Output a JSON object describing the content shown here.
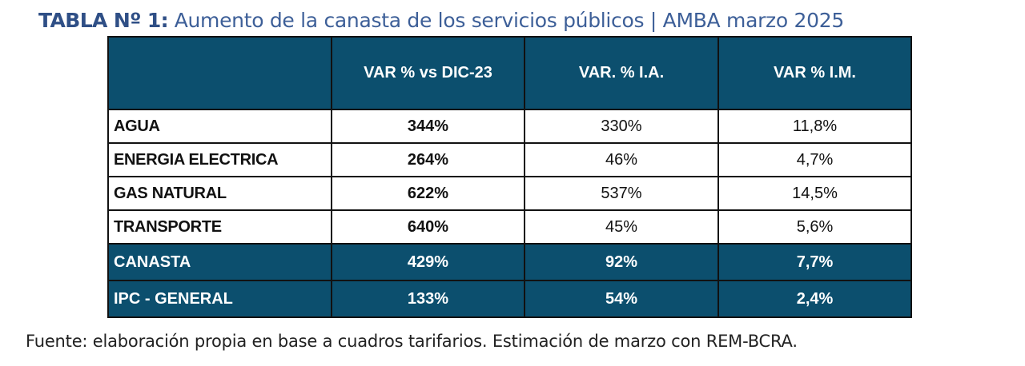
{
  "title": {
    "bold": "TABLA Nº 1:",
    "rest": "Aumento de la canasta de los servicios públicos | AMBA marzo 2025"
  },
  "table": {
    "headers": [
      "",
      "VAR % vs DIC-23",
      "VAR. % I.A.",
      "VAR % I.M."
    ],
    "rows": [
      [
        "AGUA",
        "344%",
        "330%",
        "11,8%"
      ],
      [
        "ENERGIA ELECTRICA",
        "264%",
        "46%",
        "4,7%"
      ],
      [
        "GAS NATURAL",
        "622%",
        "537%",
        "14,5%"
      ],
      [
        "TRANSPORTE",
        "640%",
        "45%",
        "5,6%"
      ]
    ],
    "totals": [
      [
        "CANASTA",
        "429%",
        "92%",
        "7,7%"
      ],
      [
        "IPC - GENERAL",
        "133%",
        "54%",
        "2,4%"
      ]
    ]
  },
  "source": "Fuente: elaboración propia en base a cuadros tarifarios. Estimación de marzo con REM-BCRA.",
  "colors": {
    "header_bg": "#0c4f6e",
    "title": "#2f4f86"
  }
}
